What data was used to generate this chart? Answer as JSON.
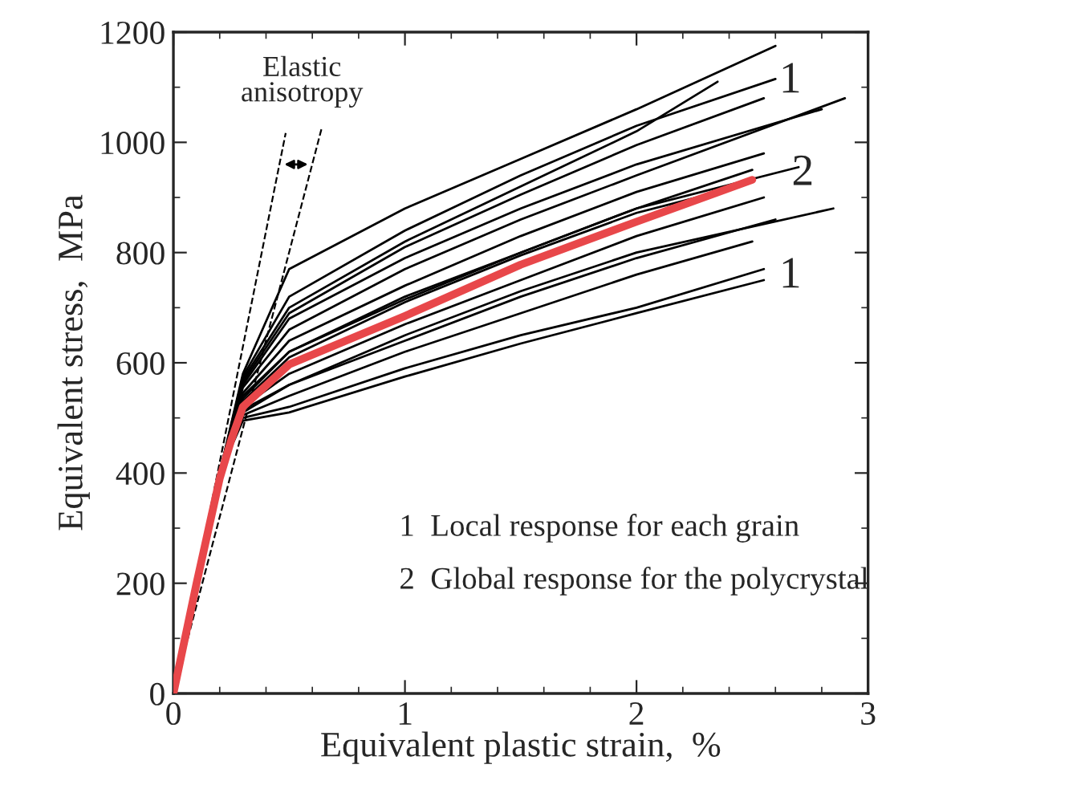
{
  "chart_data": {
    "type": "line",
    "xlabel": "Equivalent plastic strain,  %",
    "ylabel": "Equivalent stress,  MPa",
    "xlim": [
      0,
      3
    ],
    "ylim": [
      0,
      1200
    ],
    "xticks": [
      0,
      1,
      2,
      3
    ],
    "yticks": [
      0,
      200,
      400,
      600,
      800,
      1000,
      1200
    ],
    "grid": false,
    "marker": "none",
    "series": [
      {
        "color": "#000000",
        "x": [
          0,
          0.1,
          0.2,
          0.3,
          0.5,
          1,
          1.5,
          2,
          2.6
        ],
        "values": [
          0,
          200,
          400,
          580,
          770,
          880,
          970,
          1060,
          1175
        ]
      },
      {
        "color": "#000000",
        "x": [
          0,
          0.1,
          0.2,
          0.3,
          0.5,
          1,
          1.5,
          2,
          2.35
        ],
        "values": [
          0,
          200,
          400,
          570,
          700,
          820,
          920,
          1020,
          1110
        ]
      },
      {
        "color": "#000000",
        "x": [
          0,
          0.1,
          0.2,
          0.3,
          0.5,
          1,
          1.5,
          2,
          2.6
        ],
        "values": [
          0,
          200,
          400,
          575,
          720,
          840,
          940,
          1030,
          1115
        ]
      },
      {
        "color": "#000000",
        "x": [
          0,
          0.1,
          0.2,
          0.3,
          0.5,
          1,
          1.5,
          2,
          2.55
        ],
        "values": [
          0,
          200,
          400,
          565,
          690,
          810,
          905,
          995,
          1080
        ]
      },
      {
        "color": "#000000",
        "x": [
          0,
          0.1,
          0.2,
          0.3,
          0.5,
          1,
          1.5,
          2,
          2.8
        ],
        "values": [
          0,
          200,
          400,
          560,
          680,
          790,
          880,
          960,
          1060
        ]
      },
      {
        "color": "#000000",
        "x": [
          0,
          0.1,
          0.2,
          0.3,
          0.5,
          1,
          1.5,
          2,
          2.9
        ],
        "values": [
          0,
          200,
          400,
          555,
          660,
          770,
          860,
          940,
          1080
        ]
      },
      {
        "color": "#000000",
        "x": [
          0,
          0.1,
          0.2,
          0.3,
          0.5,
          1,
          1.5,
          2,
          2.55
        ],
        "values": [
          0,
          200,
          400,
          545,
          640,
          740,
          830,
          910,
          980
        ]
      },
      {
        "color": "#000000",
        "x": [
          0,
          0.1,
          0.2,
          0.3,
          0.5,
          1,
          1.5,
          2,
          2.5
        ],
        "values": [
          0,
          200,
          400,
          540,
          620,
          715,
          800,
          880,
          950
        ]
      },
      {
        "color": "#000000",
        "x": [
          0,
          0.1,
          0.2,
          0.3,
          0.5,
          1,
          1.5,
          2,
          2.7
        ],
        "values": [
          0,
          200,
          400,
          535,
          620,
          720,
          800,
          880,
          955
        ]
      },
      {
        "color": "#000000",
        "x": [
          0,
          0.1,
          0.2,
          0.3,
          0.5,
          1,
          1.5,
          2,
          2.4
        ],
        "values": [
          0,
          200,
          400,
          530,
          610,
          710,
          795,
          872,
          915
        ]
      },
      {
        "color": "#000000",
        "x": [
          0,
          0.1,
          0.2,
          0.3,
          0.5,
          1,
          1.5,
          2,
          2.55
        ],
        "values": [
          0,
          200,
          400,
          520,
          580,
          670,
          750,
          830,
          900
        ]
      },
      {
        "color": "#000000",
        "x": [
          0,
          0.1,
          0.2,
          0.3,
          0.5,
          1,
          1.5,
          2,
          2.85
        ],
        "values": [
          0,
          200,
          400,
          515,
          560,
          650,
          730,
          800,
          880
        ]
      },
      {
        "color": "#000000",
        "x": [
          0,
          0.1,
          0.2,
          0.3,
          0.5,
          1,
          1.5,
          2,
          2.6
        ],
        "values": [
          0,
          200,
          400,
          510,
          560,
          640,
          720,
          790,
          860
        ]
      },
      {
        "color": "#000000",
        "x": [
          0,
          0.1,
          0.2,
          0.3,
          0.5,
          1,
          1.5,
          2,
          2.5
        ],
        "values": [
          0,
          200,
          400,
          505,
          540,
          620,
          690,
          760,
          820
        ]
      },
      {
        "color": "#000000",
        "x": [
          0,
          0.1,
          0.2,
          0.3,
          0.5,
          1,
          1.5,
          2,
          2.55
        ],
        "values": [
          0,
          200,
          400,
          500,
          520,
          590,
          650,
          700,
          770
        ]
      },
      {
        "color": "#000000",
        "x": [
          0,
          0.1,
          0.2,
          0.3,
          0.5,
          1,
          1.5,
          2,
          2.55
        ],
        "values": [
          0,
          200,
          400,
          495,
          510,
          575,
          635,
          690,
          750
        ]
      },
      {
        "color": "#000000",
        "line_style": "dashed",
        "x": [
          0,
          0.485
        ],
        "values": [
          0,
          1017
        ]
      },
      {
        "color": "#000000",
        "line_style": "dashed",
        "x": [
          0,
          0.64
        ],
        "values": [
          0,
          1025
        ]
      },
      {
        "color": "#e8474a",
        "x": [
          0,
          0.1,
          0.2,
          0.25,
          0.3,
          0.5,
          1,
          1.5,
          2,
          2.5
        ],
        "values": [
          0,
          200,
          390,
          460,
          520,
          597,
          685,
          778,
          856,
          932
        ]
      }
    ],
    "annotations": [
      "Elastic\nanisotropy",
      "1",
      "2",
      "1",
      "1  Local response for each grain",
      "2  Global response for the polycrystal"
    ]
  }
}
